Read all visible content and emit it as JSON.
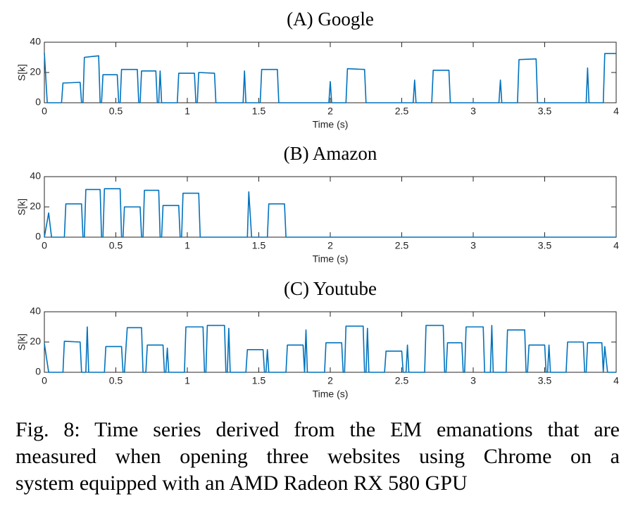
{
  "chart_data": [
    {
      "type": "line",
      "title": "(A) Google",
      "xlabel": "Time (s)",
      "ylabel": "S[k]",
      "color": "#0072bd",
      "xlim": [
        0,
        4
      ],
      "ylim": [
        0,
        40
      ],
      "xticks": [
        0,
        0.5,
        1,
        1.5,
        2,
        2.5,
        3,
        3.5,
        4
      ],
      "yticks": [
        0,
        20,
        40
      ],
      "grid": false,
      "x": [
        0,
        0.02,
        0.12,
        0.13,
        0.25,
        0.26,
        0.27,
        0.28,
        0.38,
        0.39,
        0.4,
        0.41,
        0.51,
        0.52,
        0.53,
        0.54,
        0.65,
        0.66,
        0.67,
        0.68,
        0.78,
        0.79,
        0.8,
        0.81,
        0.82,
        0.93,
        0.94,
        1.05,
        1.06,
        1.07,
        1.08,
        1.19,
        1.2,
        1.39,
        1.4,
        1.41,
        1.51,
        1.52,
        1.63,
        1.64,
        1.99,
        2.0,
        2.01,
        2.11,
        2.12,
        2.24,
        2.25,
        2.58,
        2.59,
        2.6,
        2.71,
        2.72,
        2.83,
        2.84,
        3.18,
        3.19,
        3.2,
        3.31,
        3.32,
        3.44,
        3.45,
        3.79,
        3.8,
        3.81,
        3.91,
        3.92,
        4.0
      ],
      "values": [
        33,
        0,
        0,
        13,
        13.5,
        0,
        0,
        30,
        31,
        0,
        0,
        18.5,
        18.5,
        0,
        0,
        22,
        22,
        0,
        0,
        21,
        21,
        0,
        0,
        21,
        0,
        0,
        19.5,
        19.5,
        0,
        0,
        20,
        19.5,
        0,
        0,
        21,
        0,
        0,
        22,
        22,
        0,
        0,
        14,
        0,
        0,
        22.5,
        22,
        0,
        0,
        15,
        0,
        0,
        21.5,
        21.5,
        0,
        0,
        15,
        0,
        0,
        28.5,
        29,
        0,
        0,
        23,
        0,
        0,
        32.5,
        32.5
      ]
    },
    {
      "type": "line",
      "title": "(B) Amazon",
      "xlabel": "Time (s)",
      "ylabel": "S[k]",
      "color": "#0072bd",
      "xlim": [
        0,
        4
      ],
      "ylim": [
        0,
        40
      ],
      "xticks": [
        0,
        0.5,
        1,
        1.5,
        2,
        2.5,
        3,
        3.5,
        4
      ],
      "yticks": [
        0,
        20,
        40
      ],
      "grid": false,
      "x": [
        0,
        0.03,
        0.05,
        0.14,
        0.15,
        0.26,
        0.27,
        0.28,
        0.29,
        0.39,
        0.4,
        0.41,
        0.42,
        0.53,
        0.54,
        0.55,
        0.56,
        0.67,
        0.68,
        0.69,
        0.7,
        0.8,
        0.81,
        0.82,
        0.83,
        0.94,
        0.95,
        0.96,
        0.97,
        1.08,
        1.09,
        1.42,
        1.43,
        1.45,
        1.56,
        1.57,
        1.68,
        1.69,
        4.0
      ],
      "values": [
        0,
        16,
        0,
        0,
        22,
        22,
        0,
        0,
        31.5,
        31.5,
        0,
        0,
        32,
        32,
        0,
        0,
        20,
        20,
        0,
        0,
        31,
        31,
        0,
        0,
        21,
        21,
        0,
        0,
        29,
        29,
        0,
        0,
        30,
        0,
        0,
        22,
        22,
        0,
        0
      ]
    },
    {
      "type": "line",
      "title": "(C) Youtube",
      "xlabel": "Time (s)",
      "ylabel": "S[k]",
      "color": "#0072bd",
      "xlim": [
        0,
        4
      ],
      "ylim": [
        0,
        40
      ],
      "xticks": [
        0,
        0.5,
        1,
        1.5,
        2,
        2.5,
        3,
        3.5,
        4
      ],
      "yticks": [
        0,
        20,
        40
      ],
      "grid": false,
      "x": [
        0,
        0.03,
        0.13,
        0.14,
        0.25,
        0.26,
        0.29,
        0.3,
        0.31,
        0.42,
        0.43,
        0.54,
        0.55,
        0.56,
        0.58,
        0.68,
        0.69,
        0.71,
        0.72,
        0.83,
        0.84,
        0.85,
        0.86,
        0.87,
        0.98,
        0.99,
        1.11,
        1.12,
        1.13,
        1.14,
        1.26,
        1.27,
        1.28,
        1.29,
        1.3,
        1.41,
        1.42,
        1.53,
        1.54,
        1.55,
        1.56,
        1.57,
        1.69,
        1.7,
        1.81,
        1.82,
        1.83,
        1.84,
        1.96,
        1.97,
        2.08,
        2.09,
        2.1,
        2.11,
        2.23,
        2.24,
        2.25,
        2.26,
        2.27,
        2.38,
        2.39,
        2.5,
        2.51,
        2.53,
        2.54,
        2.55,
        2.66,
        2.67,
        2.79,
        2.8,
        2.81,
        2.82,
        2.92,
        2.93,
        2.94,
        2.95,
        3.07,
        3.08,
        3.12,
        3.13,
        3.14,
        3.23,
        3.24,
        3.36,
        3.37,
        3.38,
        3.39,
        3.5,
        3.51,
        3.52,
        3.53,
        3.54,
        3.65,
        3.66,
        3.77,
        3.78,
        3.79,
        3.8,
        3.9,
        3.91,
        3.92,
        3.94,
        4.0
      ],
      "values": [
        19,
        0,
        0,
        20.5,
        20,
        0,
        0,
        30,
        0,
        0,
        17,
        17,
        0,
        0,
        29.5,
        29.5,
        0,
        0,
        18,
        18,
        0,
        0,
        16,
        0,
        0,
        30,
        30,
        0,
        0,
        31,
        31,
        0,
        0,
        29,
        0,
        0,
        15,
        15,
        0,
        0,
        15,
        0,
        0,
        18,
        18,
        0,
        28,
        0,
        0,
        19.5,
        19.5,
        0,
        0,
        30.5,
        30.5,
        0,
        0,
        29,
        0,
        0,
        14,
        14,
        0,
        0,
        18,
        0,
        0,
        31,
        31,
        0,
        0,
        19.5,
        19.5,
        0,
        0,
        30,
        30,
        0,
        0,
        31,
        0,
        0,
        28,
        28,
        0,
        0,
        18,
        18,
        0,
        0,
        18,
        0,
        0,
        20,
        20,
        0,
        0,
        19.5,
        19.5,
        0,
        17,
        0,
        0
      ]
    }
  ],
  "caption": [
    "Fig. 8: Time series derived from the EM emanations that are",
    "measured when opening three websites using Chrome on a",
    "system equipped with an AMD Radeon RX 580 GPU"
  ]
}
